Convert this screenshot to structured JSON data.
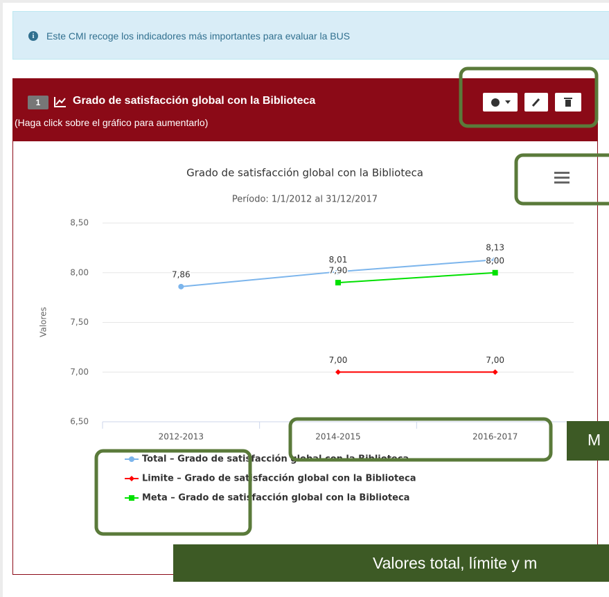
{
  "info": {
    "text": "Este CMI recoge los indicadores más importantes para evaluar la BUS"
  },
  "panel": {
    "number": "1",
    "title": "Grado de satisfacción global con la Biblioteca",
    "subtitle": "(Haga click sobre el gráfico para aumentarlo)"
  },
  "chart_data": {
    "type": "line",
    "title": "Grado de satisfacción global con la Biblioteca",
    "subtitle": "Período: 1/1/2012 al 31/12/2017",
    "y_label": "Valores",
    "categories": [
      "2012-2013",
      "2014-2015",
      "2016-2017"
    ],
    "ylim": [
      6.5,
      8.5
    ],
    "yticks": [
      {
        "value": 6.5,
        "label": "6,50"
      },
      {
        "value": 7,
        "label": "7,00"
      },
      {
        "value": 7.5,
        "label": "7,50"
      },
      {
        "value": 8,
        "label": "8,00"
      },
      {
        "value": 8.5,
        "label": "8,50"
      }
    ],
    "grid": true,
    "series": [
      {
        "name": "Total – Grado de satisfacción global con la Biblioteca",
        "color": "#7cb5ec",
        "marker": "circle",
        "values": [
          7.86,
          8.01,
          8.13
        ],
        "value_labels": [
          "7,86",
          "8,01",
          "8,13"
        ]
      },
      {
        "name": "Limite – Grado de satisfacción global con la Biblioteca",
        "color": "#ff0000",
        "marker": "diamond",
        "values": [
          null,
          7.0,
          7.0
        ],
        "value_labels": [
          null,
          "7,00",
          "7,00"
        ]
      },
      {
        "name": "Meta – Grado de satisfacción global con la Biblioteca",
        "color": "#00e000",
        "marker": "square",
        "values": [
          null,
          7.9,
          8.0
        ],
        "value_labels": [
          null,
          "7,90",
          "8,00"
        ]
      }
    ]
  },
  "annotations": [
    "M",
    "Valores total, límite y m"
  ]
}
